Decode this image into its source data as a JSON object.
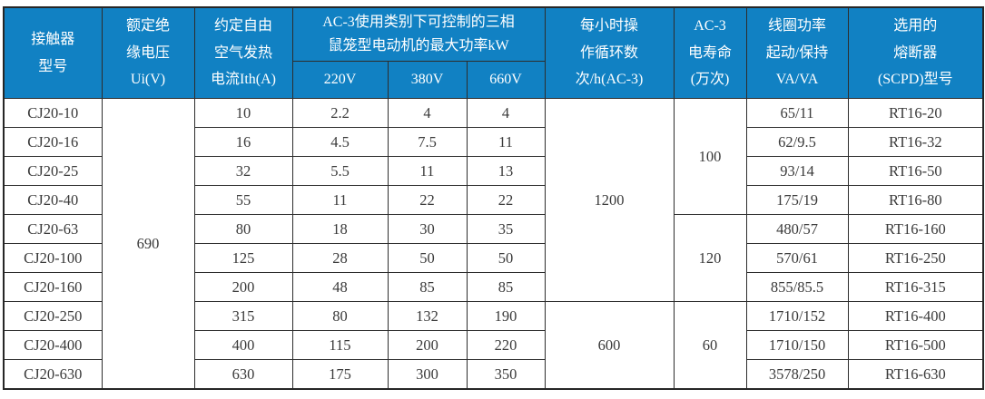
{
  "colors": {
    "header_bg": "#1181c3",
    "header_text": "#ffffff",
    "border": "#2d2d2d",
    "cell_text": "#3a3a3a",
    "body_bg": "#ffffff"
  },
  "table": {
    "headers": {
      "model": "接触器\n型号",
      "insulation_voltage": "额定绝\n缘电压\nUi(V)",
      "thermal_current": "约定自由\n空气发热\n电流Ith(A)",
      "power_group": "AC-3使用类别下可控制的三相\n鼠笼型电动机的最大功率kW",
      "power_sub": [
        "220V",
        "380V",
        "660V"
      ],
      "cycles_per_hour": "每小时操\n作循环数\n次/h(AC-3)",
      "electrical_life": "AC-3\n电寿命\n(万次)",
      "coil_power": "线圈功率\n起动/保持\nVA/VA",
      "fuse": "选用的\n熔断器\n(SCPD)型号"
    },
    "rows": [
      {
        "cells": [
          {
            "v": "CJ20-10",
            "name": "model-cell"
          },
          {
            "v": "690",
            "rowspan": 10,
            "name": "ui-cell"
          },
          {
            "v": "10",
            "name": "ith-cell"
          },
          {
            "v": "2.2",
            "name": "p220-cell"
          },
          {
            "v": "4",
            "name": "p380-cell"
          },
          {
            "v": "4",
            "name": "p660-cell"
          },
          {
            "v": "1200",
            "rowspan": 7,
            "name": "cycles-cell"
          },
          {
            "v": "100",
            "rowspan": 4,
            "name": "life-cell"
          },
          {
            "v": "65/11",
            "name": "coil-cell"
          },
          {
            "v": "RT16-20",
            "name": "fuse-cell"
          }
        ]
      },
      {
        "cells": [
          {
            "v": "CJ20-16",
            "name": "model-cell"
          },
          {
            "v": "16",
            "name": "ith-cell"
          },
          {
            "v": "4.5",
            "name": "p220-cell"
          },
          {
            "v": "7.5",
            "name": "p380-cell"
          },
          {
            "v": "11",
            "name": "p660-cell"
          },
          {
            "v": "62/9.5",
            "name": "coil-cell"
          },
          {
            "v": "RT16-32",
            "name": "fuse-cell"
          }
        ]
      },
      {
        "cells": [
          {
            "v": "CJ20-25",
            "name": "model-cell"
          },
          {
            "v": "32",
            "name": "ith-cell"
          },
          {
            "v": "5.5",
            "name": "p220-cell"
          },
          {
            "v": "11",
            "name": "p380-cell"
          },
          {
            "v": "13",
            "name": "p660-cell"
          },
          {
            "v": "93/14",
            "name": "coil-cell"
          },
          {
            "v": "RT16-50",
            "name": "fuse-cell"
          }
        ]
      },
      {
        "cells": [
          {
            "v": "CJ20-40",
            "name": "model-cell"
          },
          {
            "v": "55",
            "name": "ith-cell"
          },
          {
            "v": "11",
            "name": "p220-cell"
          },
          {
            "v": "22",
            "name": "p380-cell"
          },
          {
            "v": "22",
            "name": "p660-cell"
          },
          {
            "v": "175/19",
            "name": "coil-cell"
          },
          {
            "v": "RT16-80",
            "name": "fuse-cell"
          }
        ]
      },
      {
        "cells": [
          {
            "v": "CJ20-63",
            "name": "model-cell"
          },
          {
            "v": "80",
            "name": "ith-cell"
          },
          {
            "v": "18",
            "name": "p220-cell"
          },
          {
            "v": "30",
            "name": "p380-cell"
          },
          {
            "v": "35",
            "name": "p660-cell"
          },
          {
            "v": "120",
            "rowspan": 3,
            "name": "life-cell"
          },
          {
            "v": "480/57",
            "name": "coil-cell"
          },
          {
            "v": "RT16-160",
            "name": "fuse-cell"
          }
        ]
      },
      {
        "cells": [
          {
            "v": "CJ20-100",
            "name": "model-cell"
          },
          {
            "v": "125",
            "name": "ith-cell"
          },
          {
            "v": "28",
            "name": "p220-cell"
          },
          {
            "v": "50",
            "name": "p380-cell"
          },
          {
            "v": "50",
            "name": "p660-cell"
          },
          {
            "v": "570/61",
            "name": "coil-cell"
          },
          {
            "v": "RT16-250",
            "name": "fuse-cell"
          }
        ]
      },
      {
        "cells": [
          {
            "v": "CJ20-160",
            "name": "model-cell"
          },
          {
            "v": "200",
            "name": "ith-cell"
          },
          {
            "v": "48",
            "name": "p220-cell"
          },
          {
            "v": "85",
            "name": "p380-cell"
          },
          {
            "v": "85",
            "name": "p660-cell"
          },
          {
            "v": "855/85.5",
            "name": "coil-cell"
          },
          {
            "v": "RT16-315",
            "name": "fuse-cell"
          }
        ]
      },
      {
        "cells": [
          {
            "v": "CJ20-250",
            "name": "model-cell"
          },
          {
            "v": "315",
            "name": "ith-cell"
          },
          {
            "v": "80",
            "name": "p220-cell"
          },
          {
            "v": "132",
            "name": "p380-cell"
          },
          {
            "v": "190",
            "name": "p660-cell"
          },
          {
            "v": "600",
            "rowspan": 3,
            "name": "cycles-cell"
          },
          {
            "v": "60",
            "rowspan": 3,
            "name": "life-cell"
          },
          {
            "v": "1710/152",
            "name": "coil-cell"
          },
          {
            "v": "RT16-400",
            "name": "fuse-cell"
          }
        ]
      },
      {
        "cells": [
          {
            "v": "CJ20-400",
            "name": "model-cell"
          },
          {
            "v": "400",
            "name": "ith-cell"
          },
          {
            "v": "115",
            "name": "p220-cell"
          },
          {
            "v": "200",
            "name": "p380-cell"
          },
          {
            "v": "220",
            "name": "p660-cell"
          },
          {
            "v": "1710/150",
            "name": "coil-cell"
          },
          {
            "v": "RT16-500",
            "name": "fuse-cell"
          }
        ]
      },
      {
        "cells": [
          {
            "v": "CJ20-630",
            "name": "model-cell"
          },
          {
            "v": "630",
            "name": "ith-cell"
          },
          {
            "v": "175",
            "name": "p220-cell"
          },
          {
            "v": "300",
            "name": "p380-cell"
          },
          {
            "v": "350",
            "name": "p660-cell"
          },
          {
            "v": "3578/250",
            "name": "coil-cell"
          },
          {
            "v": "RT16-630",
            "name": "fuse-cell"
          }
        ]
      }
    ]
  }
}
